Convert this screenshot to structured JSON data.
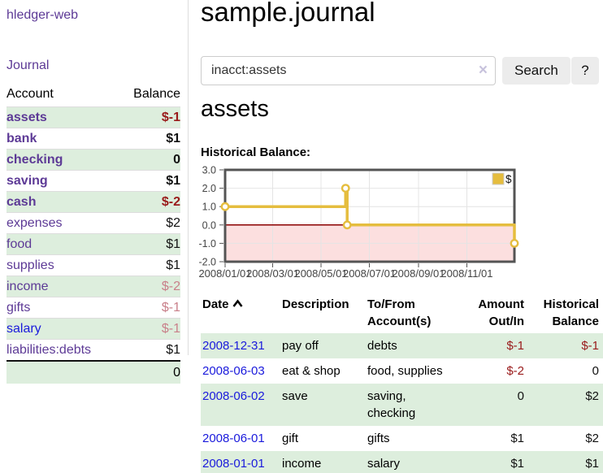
{
  "colors": {
    "link_purple": "#5d3a96",
    "link_blue": "#1a1adc",
    "neg_strong": "#991a1a",
    "neg_soft": "#c9808a",
    "row_green": "#ddeedd",
    "chart_line": "#e5bd3e",
    "chart_neg_fill": "#fcdfdf",
    "chart_zero_line": "#8b0000",
    "chart_border": "#545454"
  },
  "app": {
    "title": "hledger-web"
  },
  "sidebar": {
    "journal_link": "Journal",
    "header": {
      "account": "Account",
      "balance": "Balance"
    },
    "accounts": [
      {
        "name": "assets",
        "level": 1,
        "bold": true,
        "balance": "$-1",
        "style": "neg_strong"
      },
      {
        "name": "bank",
        "level": 2,
        "bold": true,
        "balance": "$1",
        "style": "pos"
      },
      {
        "name": "checking",
        "level": 3,
        "bold": true,
        "balance": "0",
        "style": "pos"
      },
      {
        "name": "saving",
        "level": 3,
        "bold": true,
        "balance": "$1",
        "style": "pos"
      },
      {
        "name": "cash",
        "level": 2,
        "bold": true,
        "balance": "$-2",
        "style": "neg_strong"
      },
      {
        "name": "expenses",
        "level": 1,
        "bold": false,
        "balance": "$2",
        "style": "pos"
      },
      {
        "name": "food",
        "level": 2,
        "bold": false,
        "balance": "$1",
        "style": "pos"
      },
      {
        "name": "supplies",
        "level": 2,
        "bold": false,
        "balance": "$1",
        "style": "pos"
      },
      {
        "name": "income",
        "level": 1,
        "bold": false,
        "balance": "$-2",
        "style": "neg_soft"
      },
      {
        "name": "gifts",
        "level": 2,
        "bold": false,
        "balance": "$-1",
        "style": "neg_soft"
      },
      {
        "name": "salary",
        "level": 2,
        "bold": false,
        "balance": "$-1",
        "style": "neg_soft",
        "blue": true
      },
      {
        "name": "liabilities:debts",
        "level": 1,
        "bold": false,
        "balance": "$1",
        "style": "pos"
      }
    ],
    "total": "0"
  },
  "header": {
    "title": "sample.journal"
  },
  "search": {
    "value": "inacct:assets",
    "clear_icon": "×",
    "button": "Search",
    "help_button": "?"
  },
  "account_page": {
    "title": "assets",
    "chart_label": "Historical Balance:"
  },
  "chart_data": {
    "type": "line",
    "step": true,
    "title": "Historical Balance",
    "series": [
      {
        "name": "$",
        "points": [
          [
            "2008-01-01",
            1
          ],
          [
            "2008-06-01",
            2
          ],
          [
            "2008-06-03",
            0
          ],
          [
            "2008-12-31",
            -1
          ]
        ]
      }
    ],
    "ylim": [
      -2.0,
      3.0
    ],
    "yticks": [
      "3.0",
      "2.0",
      "1.0",
      "0.0",
      "-1.0",
      "-2.0"
    ],
    "xticks": [
      "2008/01/01",
      "2008/03/01",
      "2008/05/01",
      "2008/07/01",
      "2008/09/01",
      "2008/11/01"
    ],
    "xrange": [
      "2008/01/01",
      "2008/12/31"
    ],
    "legend": "$",
    "legend_position": "top-right",
    "grid": true,
    "negative_region_shaded": true
  },
  "register": {
    "columns": {
      "date": "Date",
      "description": "Description",
      "accounts": "To/From Account(s)",
      "amount": "Amount Out/In",
      "balance": "Historical Balance"
    },
    "rows": [
      {
        "date": "2008-12-31",
        "description": "pay off",
        "accounts": "debts",
        "amount": "$-1",
        "amount_neg": true,
        "balance": "$-1",
        "balance_neg": true
      },
      {
        "date": "2008-06-03",
        "description": "eat & shop",
        "accounts": "food, supplies",
        "amount": "$-2",
        "amount_neg": true,
        "balance": "0",
        "balance_neg": false
      },
      {
        "date": "2008-06-02",
        "description": "save",
        "accounts": "saving, checking",
        "amount": "0",
        "amount_neg": false,
        "balance": "$2",
        "balance_neg": false
      },
      {
        "date": "2008-06-01",
        "description": "gift",
        "accounts": "gifts",
        "amount": "$1",
        "amount_neg": false,
        "balance": "$2",
        "balance_neg": false
      },
      {
        "date": "2008-01-01",
        "description": "income",
        "accounts": "salary",
        "amount": "$1",
        "amount_neg": false,
        "balance": "$1",
        "balance_neg": false
      }
    ]
  }
}
